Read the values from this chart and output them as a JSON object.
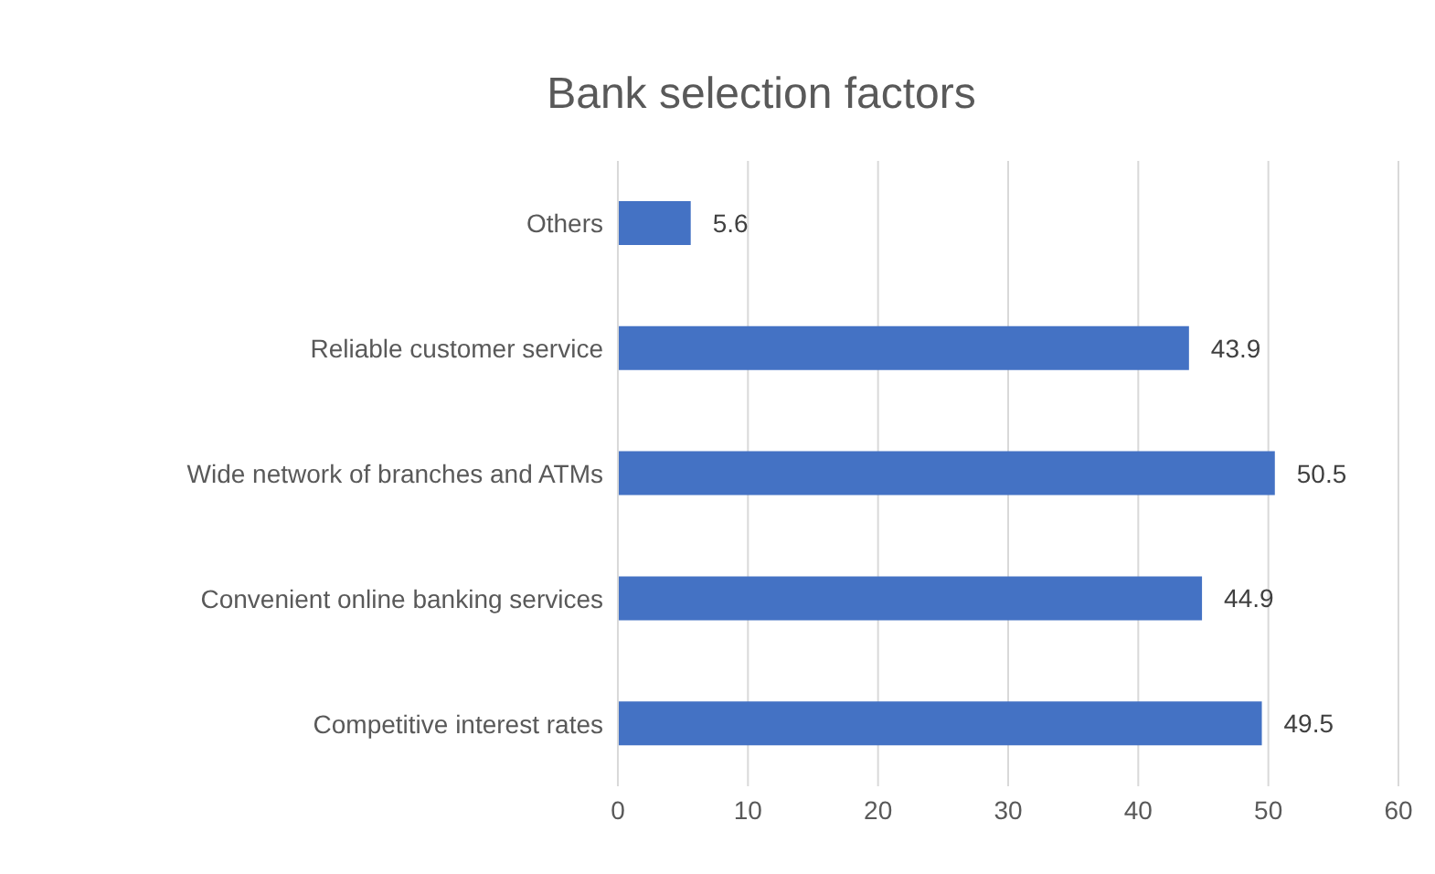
{
  "chart_data": {
    "type": "bar",
    "title": "Bank selection factors",
    "orientation": "horizontal",
    "categories": [
      "Others",
      "Reliable customer service",
      "Wide network of branches and ATMs",
      "Convenient online banking services",
      "Competitive interest rates"
    ],
    "values": [
      5.6,
      43.9,
      50.5,
      44.9,
      49.5
    ],
    "color": "#4472c4",
    "xlim": [
      0,
      60
    ],
    "xticks": [
      0,
      10,
      20,
      30,
      40,
      50,
      60
    ],
    "grid": "x",
    "data_labels": true
  }
}
